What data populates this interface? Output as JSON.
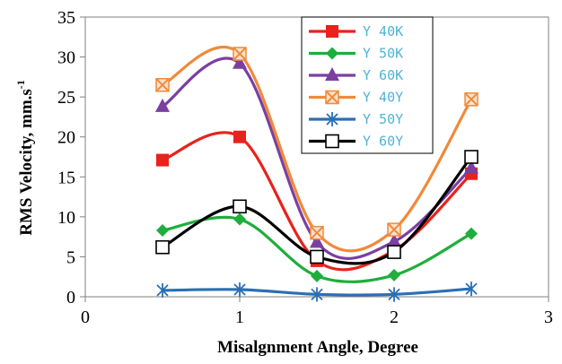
{
  "chart_data": {
    "type": "line",
    "title": "",
    "xlabel": "Misalgnment Angle, Degree",
    "ylabel_main": "RMS Velocity, mm.s",
    "ylabel_sup": "-1",
    "xlim": [
      0,
      3
    ],
    "ylim": [
      0,
      35
    ],
    "xticks": [
      "0",
      "1",
      "2",
      "3"
    ],
    "yticks": [
      "0",
      "5",
      "10",
      "15",
      "20",
      "25",
      "30",
      "35"
    ],
    "grid": false,
    "legend_placement": "top-center",
    "x": [
      0.5,
      1,
      1.5,
      2,
      2.5
    ],
    "series": [
      {
        "name": "Y 40K",
        "color": "#e8221c",
        "marker": "square",
        "values": [
          17.1,
          20.0,
          4.5,
          5.8,
          15.4
        ]
      },
      {
        "name": "Y 50K",
        "color": "#1eae3c",
        "marker": "diamond",
        "values": [
          8.3,
          9.7,
          2.6,
          2.7,
          7.9
        ]
      },
      {
        "name": "Y 60K",
        "color": "#7b3fa2",
        "marker": "triangle",
        "values": [
          23.8,
          29.2,
          6.8,
          6.9,
          16.1
        ]
      },
      {
        "name": "Y 40Y",
        "color": "#f08a3a",
        "marker": "xbox",
        "values": [
          26.5,
          30.4,
          8.0,
          8.4,
          24.7
        ]
      },
      {
        "name": "Y 50Y",
        "color": "#2b6fb4",
        "marker": "asterisk",
        "values": [
          0.8,
          0.9,
          0.3,
          0.3,
          1.0
        ]
      },
      {
        "name": "Y 60Y",
        "color": "#000000",
        "marker": "opensquare",
        "values": [
          6.2,
          11.3,
          5.0,
          5.6,
          17.5
        ]
      }
    ]
  }
}
